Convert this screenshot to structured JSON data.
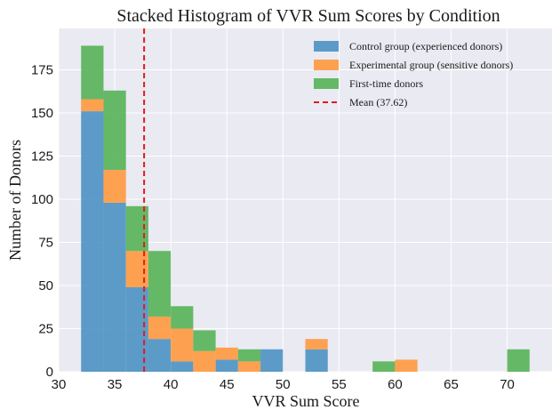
{
  "chart_data": {
    "type": "bar",
    "title": "Stacked Histogram of VVR Sum Scores by Condition",
    "xlabel": "VVR Sum Score",
    "ylabel": "Number of Donors",
    "xlim": [
      30,
      74
    ],
    "ylim": [
      0,
      199
    ],
    "xticks": [
      30,
      35,
      40,
      45,
      50,
      55,
      60,
      65,
      70
    ],
    "yticks": [
      0,
      25,
      50,
      75,
      100,
      125,
      150,
      175
    ],
    "grid": true,
    "legend_position": "top-right",
    "bin_edges": [
      32,
      34,
      36,
      38,
      40,
      42,
      44,
      46,
      48,
      50,
      52,
      54,
      56,
      58,
      60,
      62,
      64,
      66,
      68,
      70,
      72
    ],
    "series": [
      {
        "name": "Control group (experienced donors)",
        "color": "#4c92c3",
        "values": [
          151,
          98,
          49,
          19,
          6,
          0,
          7,
          0,
          13,
          0,
          13,
          0,
          0,
          0,
          0,
          0,
          0,
          0,
          0,
          0
        ]
      },
      {
        "name": "Experimental group (sensitive donors)",
        "color": "#ff993e",
        "values": [
          7,
          19,
          21,
          13,
          19,
          12,
          7,
          6,
          0,
          0,
          6,
          0,
          0,
          0,
          7,
          0,
          0,
          0,
          0,
          0
        ]
      },
      {
        "name": "First-time donors",
        "color": "#56b356",
        "values": [
          31,
          46,
          26,
          38,
          13,
          12,
          0,
          7,
          0,
          0,
          0,
          0,
          0,
          6,
          0,
          0,
          0,
          0,
          0,
          13
        ]
      }
    ],
    "mean_line": {
      "label": "Mean (37.62)",
      "value": 37.62,
      "color": "#e31a1c"
    }
  }
}
